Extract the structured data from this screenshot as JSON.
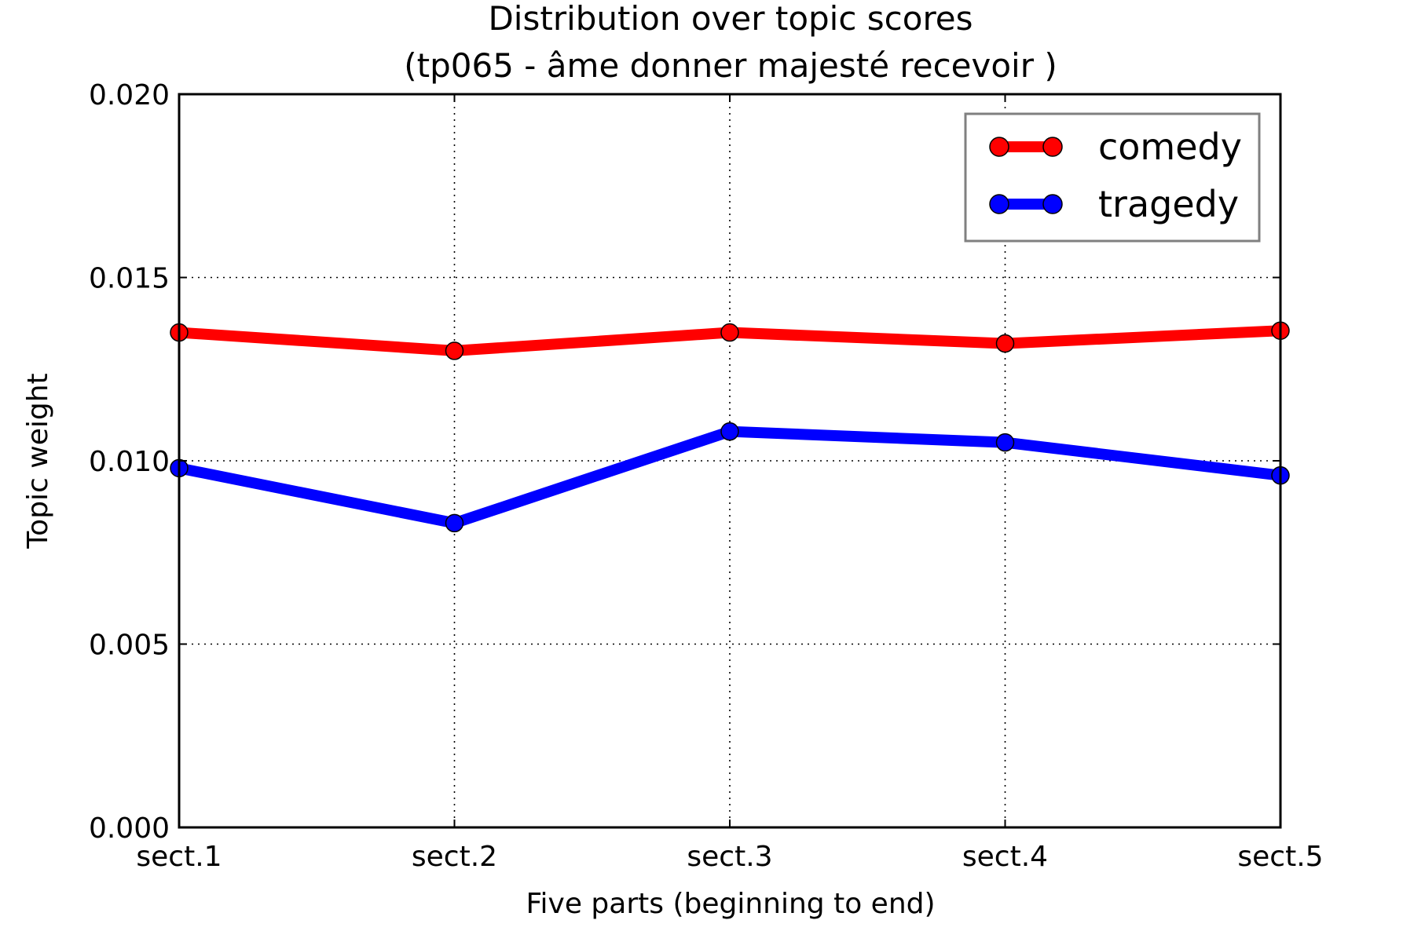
{
  "chart_data": {
    "type": "line",
    "title": "Distribution over topic scores",
    "subtitle": "(tp065 - âme donner majesté recevoir )",
    "xlabel": "Five parts (beginning to end)",
    "ylabel": "Topic weight",
    "categories": [
      "sect.1",
      "sect.2",
      "sect.3",
      "sect.4",
      "sect.5"
    ],
    "ylim": [
      0.0,
      0.02
    ],
    "yticks": [
      "0.000",
      "0.005",
      "0.010",
      "0.015",
      "0.020"
    ],
    "ytick_values": [
      0.0,
      0.005,
      0.01,
      0.015,
      0.02
    ],
    "grid": true,
    "legend_position": "top-right",
    "series": [
      {
        "name": "comedy",
        "color": "#ff0000",
        "values": [
          0.0135,
          0.013,
          0.0135,
          0.0132,
          0.01355
        ]
      },
      {
        "name": "tragedy",
        "color": "#0000ff",
        "values": [
          0.0098,
          0.0083,
          0.0108,
          0.0105,
          0.0096
        ]
      }
    ]
  }
}
